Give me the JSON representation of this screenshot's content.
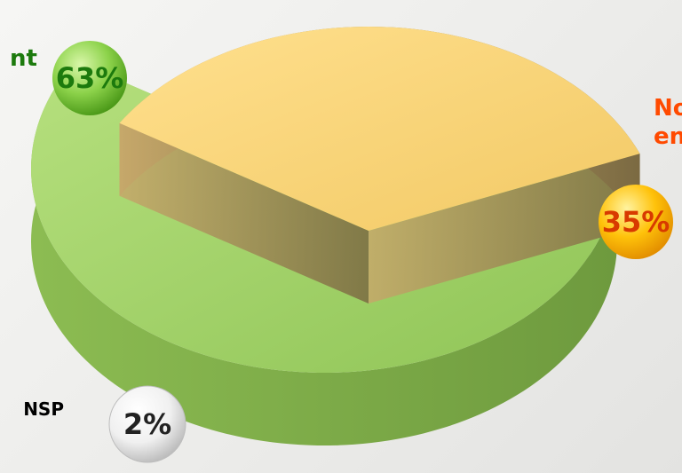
{
  "chart_data": {
    "type": "pie",
    "title": "",
    "categories": [
      "nt",
      "No\nen",
      "NSP"
    ],
    "values": [
      63,
      35,
      2
    ],
    "value_labels": [
      "63%",
      "35%",
      "2%"
    ],
    "colors": {
      "slice_top": [
        "#a4d46c",
        "#fdd97e",
        "#b9b9b9"
      ],
      "slice_side": [
        "#7ea84a",
        "#a98a4b",
        "#8d8d8d"
      ],
      "label_text": [
        "#1c7a0d",
        "#ff4a00",
        "#000000"
      ],
      "badge_fill": [
        "#79c23c",
        "#ffbb00",
        "#f2f2f2"
      ],
      "badge_text": [
        "#1c7a0d",
        "#d83a00",
        "#222222"
      ]
    },
    "style": "3d-exploded"
  }
}
